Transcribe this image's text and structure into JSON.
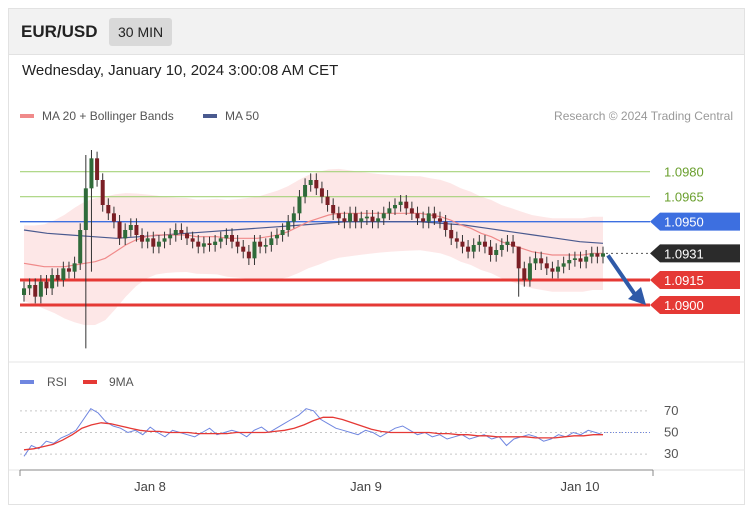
{
  "header": {
    "symbol": "EUR/USD",
    "timeframe": "30 MIN"
  },
  "timestamp": "Wednesday, January 10, 2024 3:00:08 AM CET",
  "legend": {
    "ma20_label": "MA 20 + Bollinger Bands",
    "ma50_label": "MA 50",
    "source": "Research © 2024 Trading Central",
    "rsi_label": "RSI",
    "ma9_label": "9MA"
  },
  "colors": {
    "bollinger_fill": "#fde3e3",
    "ma20": "#f08a8a",
    "ma50": "#4a5a8f",
    "candle_up": "#2f6b3a",
    "candle_down": "#7a1f25",
    "target_green": "#8bc34a",
    "pivot_blue": "#3d6fe0",
    "support_red": "#e53935",
    "rsi": "#6f86e0",
    "ma9": "#e53935"
  },
  "chart_data": [
    {
      "type": "line",
      "title": "EUR/USD 30 MIN",
      "x_ticks": [
        "Jan 8",
        "Jan 9",
        "Jan 10"
      ],
      "y_range": [
        1.0873,
        1.1002
      ],
      "levels": [
        {
          "value": 1.098,
          "label": "1.0980",
          "kind": "target"
        },
        {
          "value": 1.0965,
          "label": "1.0965",
          "kind": "target"
        },
        {
          "value": 1.095,
          "label": "1.0950",
          "kind": "pivot"
        },
        {
          "value": 1.0931,
          "label": "1.0931",
          "kind": "current"
        },
        {
          "value": 1.0915,
          "label": "1.0915",
          "kind": "support"
        },
        {
          "value": 1.09,
          "label": "1.0900",
          "kind": "support"
        }
      ],
      "close_series": [
        1.091,
        1.0912,
        1.0905,
        1.0914,
        1.091,
        1.0918,
        1.0915,
        1.0922,
        1.092,
        1.0925,
        1.0945,
        1.097,
        1.0988,
        1.0975,
        1.096,
        1.0955,
        1.095,
        1.094,
        1.0945,
        1.0948,
        1.0942,
        1.0938,
        1.094,
        1.0935,
        1.0938,
        1.094,
        1.0942,
        1.0945,
        1.0943,
        1.094,
        1.0938,
        1.0935,
        1.0937,
        1.0936,
        1.0938,
        1.094,
        1.0942,
        1.0938,
        1.0935,
        1.0932,
        1.0928,
        1.0938,
        1.0935,
        1.0936,
        1.094,
        1.0942,
        1.0945,
        1.095,
        1.0955,
        1.0965,
        1.0972,
        1.0975,
        1.097,
        1.0965,
        1.096,
        1.0955,
        1.0952,
        1.095,
        1.0955,
        1.095,
        1.0952,
        1.0953,
        1.095,
        1.0952,
        1.0955,
        1.0958,
        1.096,
        1.0962,
        1.0958,
        1.0955,
        1.0952,
        1.095,
        1.0955,
        1.0952,
        1.095,
        1.0945,
        1.094,
        1.0938,
        1.0935,
        1.0932,
        1.0936,
        1.0938,
        1.0935,
        1.093,
        1.0933,
        1.0936,
        1.0938,
        1.0935,
        1.0922,
        1.0915,
        1.0925,
        1.0928,
        1.0925,
        1.0922,
        1.092,
        1.0923,
        1.0925,
        1.0927,
        1.0928,
        1.0926,
        1.0929,
        1.0931,
        1.0929,
        1.0931
      ],
      "ma20": [
        1.0925,
        1.0924,
        1.0923,
        1.0923,
        1.0923,
        1.0924,
        1.0925,
        1.0926,
        1.0928,
        1.0932,
        1.0936,
        1.0939,
        1.0941,
        1.0942,
        1.0942,
        1.0942,
        1.0942,
        1.0941,
        1.0941,
        1.0941,
        1.094,
        1.094,
        1.094,
        1.094,
        1.0941,
        1.0942,
        1.0944,
        1.0947,
        1.095,
        1.0952,
        1.0954,
        1.0955,
        1.0955,
        1.0955,
        1.0955,
        1.0955,
        1.0955,
        1.0955,
        1.0955,
        1.0955,
        1.0954,
        1.0953,
        1.0951,
        1.0948,
        1.0946,
        1.0943,
        1.0941,
        1.0938,
        1.0936,
        1.0934,
        1.0932,
        1.0931,
        1.093,
        1.093,
        1.093,
        1.093,
        1.0931,
        1.0931
      ],
      "ma50": [
        1.0945,
        1.0943,
        1.0942,
        1.0941,
        1.094,
        1.0941,
        1.0942,
        1.0943,
        1.0944,
        1.0945,
        1.0946,
        1.0947,
        1.0948,
        1.0949,
        1.095,
        1.095,
        1.095,
        1.095,
        1.0949,
        1.0948,
        1.0946,
        1.0944,
        1.0942,
        1.094,
        1.0938,
        1.0937
      ],
      "projection": {
        "from": 1.0931,
        "to": 1.09
      }
    },
    {
      "type": "line",
      "title": "RSI",
      "y_ticks": [
        30,
        50,
        70
      ],
      "y_range": [
        20,
        80
      ],
      "series": [
        {
          "name": "RSI",
          "values": [
            28,
            38,
            35,
            42,
            40,
            45,
            48,
            52,
            62,
            72,
            68,
            60,
            56,
            54,
            50,
            52,
            48,
            55,
            50,
            46,
            52,
            50,
            48,
            46,
            50,
            54,
            48,
            50,
            52,
            50,
            46,
            52,
            55,
            50,
            54,
            58,
            62,
            66,
            72,
            70,
            62,
            58,
            54,
            52,
            50,
            48,
            52,
            50,
            46,
            50,
            54,
            56,
            52,
            48,
            50,
            46,
            48,
            44,
            46,
            48,
            44,
            46,
            48,
            44,
            46,
            38,
            44,
            46,
            48,
            46,
            42,
            44,
            48,
            46,
            50,
            48,
            52,
            50,
            48
          ]
        },
        {
          "name": "9MA",
          "values": [
            34,
            35,
            37,
            39,
            43,
            48,
            54,
            57,
            59,
            58,
            56,
            54,
            52,
            51,
            51,
            50,
            50,
            50,
            49,
            49,
            49,
            49,
            50,
            50,
            50,
            50,
            51,
            52,
            54,
            57,
            61,
            64,
            64,
            62,
            59,
            56,
            53,
            51,
            50,
            50,
            50,
            50,
            50,
            49,
            49,
            48,
            48,
            47,
            47,
            46,
            46,
            46,
            46,
            45,
            45,
            45,
            46,
            47,
            47,
            48,
            48
          ]
        }
      ]
    }
  ]
}
